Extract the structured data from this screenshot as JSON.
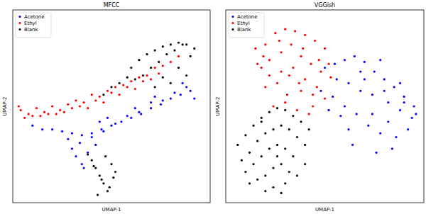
{
  "chart_data": [
    {
      "type": "scatter",
      "title": "MFCC",
      "x_label": "UMAP-1",
      "y_label": "UMAP-2",
      "xlim": [
        0,
        100
      ],
      "ylim": [
        0,
        100
      ],
      "tick_labels": false,
      "legend": "upper left",
      "series": [
        {
          "name": "Acetone",
          "color": "#0000ff",
          "marker": "circle",
          "x": [
            10,
            15,
            20,
            25,
            30,
            35,
            40,
            45,
            50,
            55,
            60,
            65,
            70,
            75,
            80,
            85,
            90,
            32,
            35,
            38,
            42,
            28,
            34,
            40,
            46,
            52,
            58,
            64,
            70,
            76,
            82,
            88,
            36,
            30,
            44,
            48,
            62,
            72,
            86,
            92
          ],
          "values": [
            40,
            38,
            38,
            37,
            36,
            35,
            36,
            38,
            40,
            42,
            44,
            46,
            49,
            51,
            54,
            56,
            58,
            24,
            20,
            26,
            30,
            33,
            31,
            34,
            37,
            41,
            45,
            47,
            52,
            53,
            57,
            60,
            18,
            28,
            42,
            44,
            49,
            55,
            62,
            54
          ]
        },
        {
          "name": "Ethyl",
          "color": "#ff0000",
          "marker": "circle",
          "x": [
            4,
            8,
            12,
            16,
            20,
            24,
            28,
            32,
            36,
            40,
            44,
            48,
            52,
            56,
            60,
            64,
            68,
            72,
            76,
            80,
            6,
            10,
            14,
            18,
            22,
            26,
            30,
            34,
            38,
            42,
            46,
            50,
            54,
            58,
            62,
            66,
            70,
            74,
            3,
            84
          ],
          "values": [
            48,
            46,
            49,
            47,
            50,
            48,
            51,
            53,
            52,
            56,
            55,
            58,
            60,
            61,
            63,
            65,
            66,
            70,
            71,
            73,
            44,
            45,
            45,
            46,
            46,
            47,
            49,
            50,
            49,
            53,
            52,
            57,
            56,
            60,
            59,
            63,
            64,
            67,
            50,
            76
          ]
        },
        {
          "name": "Blank",
          "color": "#000000",
          "marker": "circle",
          "x": [
            60,
            64,
            68,
            72,
            76,
            80,
            84,
            88,
            92,
            66,
            70,
            74,
            78,
            82,
            86,
            90,
            62,
            58,
            54,
            50,
            46,
            72,
            80,
            88,
            76,
            84,
            40,
            42,
            44,
            46,
            48,
            50,
            52,
            38,
            45,
            49,
            43,
            47,
            41,
            51
          ],
          "values": [
            70,
            74,
            77,
            79,
            81,
            82,
            83,
            82,
            80,
            66,
            70,
            73,
            77,
            79,
            82,
            76,
            64,
            65,
            62,
            60,
            56,
            60,
            62,
            66,
            65,
            70,
            22,
            18,
            14,
            10,
            6,
            20,
            16,
            25,
            12,
            8,
            4,
            24,
            19,
            13
          ]
        }
      ]
    },
    {
      "type": "scatter",
      "title": "VGGish",
      "x_label": "UMAP-1",
      "y_label": "UMAP-2",
      "xlim": [
        0,
        100
      ],
      "ylim": [
        0,
        100
      ],
      "tick_labels": false,
      "legend": "upper left",
      "series": [
        {
          "name": "Acetone",
          "color": "#0000ff",
          "marker": "circle",
          "x": [
            50,
            55,
            60,
            65,
            70,
            75,
            80,
            85,
            90,
            95,
            48,
            54,
            62,
            68,
            74,
            82,
            88,
            94,
            58,
            66,
            72,
            78,
            86,
            92,
            60,
            70,
            80,
            90,
            64,
            76,
            84,
            96,
            56,
            52,
            68,
            74,
            88,
            82,
            62,
            78
          ],
          "values": [
            70,
            72,
            74,
            76,
            73,
            68,
            64,
            60,
            55,
            50,
            58,
            55,
            62,
            58,
            56,
            52,
            48,
            44,
            45,
            46,
            40,
            36,
            34,
            38,
            50,
            64,
            58,
            52,
            30,
            26,
            28,
            46,
            64,
            48,
            68,
            46,
            62,
            42,
            38,
            74
          ]
        },
        {
          "name": "Ethyl",
          "color": "#ff0000",
          "marker": "circle",
          "x": [
            15,
            20,
            25,
            30,
            35,
            40,
            45,
            50,
            18,
            22,
            28,
            33,
            38,
            43,
            48,
            53,
            20,
            26,
            32,
            38,
            44,
            50,
            24,
            30,
            36,
            42,
            16,
            28,
            40,
            34,
            46,
            22,
            31,
            39,
            47,
            27,
            37,
            44,
            52,
            19
          ],
          "values": [
            80,
            82,
            88,
            90,
            89,
            87,
            84,
            80,
            70,
            74,
            78,
            82,
            76,
            72,
            68,
            65,
            60,
            62,
            66,
            58,
            56,
            54,
            50,
            52,
            48,
            46,
            72,
            68,
            64,
            70,
            60,
            66,
            56,
            80,
            74,
            84,
            62,
            50,
            72,
            76
          ]
        },
        {
          "name": "Blank",
          "color": "#000000",
          "marker": "circle",
          "x": [
            6,
            10,
            14,
            18,
            22,
            26,
            30,
            34,
            38,
            42,
            8,
            12,
            16,
            20,
            24,
            28,
            32,
            36,
            40,
            10,
            14,
            18,
            22,
            26,
            30,
            34,
            12,
            16,
            20,
            24,
            28,
            32,
            20,
            24,
            28,
            36,
            40,
            30,
            18,
            26
          ],
          "values": [
            30,
            35,
            40,
            44,
            47,
            49,
            48,
            45,
            42,
            38,
            22,
            26,
            32,
            36,
            38,
            40,
            38,
            34,
            30,
            16,
            20,
            24,
            28,
            30,
            28,
            24,
            10,
            12,
            14,
            18,
            20,
            16,
            6,
            8,
            5,
            14,
            20,
            10,
            42,
            24
          ]
        }
      ]
    }
  ]
}
